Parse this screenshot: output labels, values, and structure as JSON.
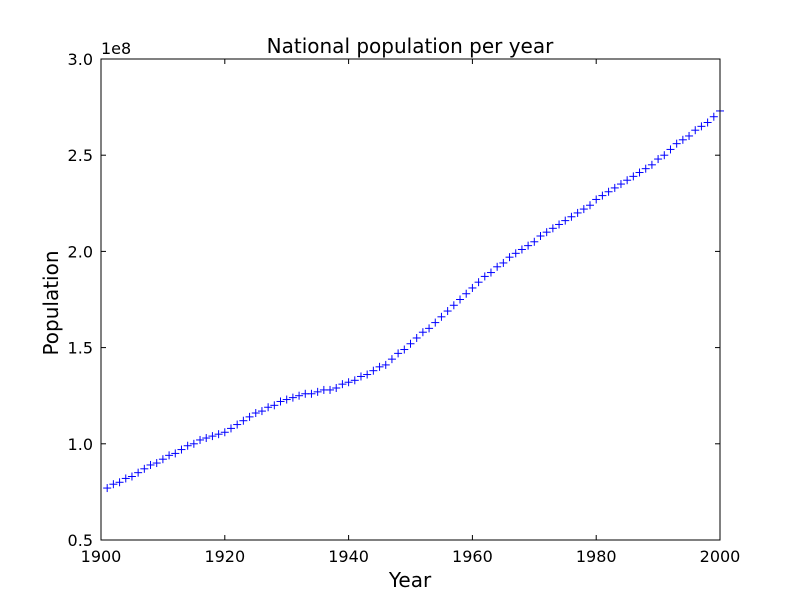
{
  "chart_data": {
    "type": "scatter",
    "title": "National population per year",
    "xlabel": "Year",
    "ylabel": "Population",
    "y_offset_label": "1e8",
    "xlim": [
      1900,
      2000
    ],
    "ylim": [
      0.5,
      3.0
    ],
    "x_ticks": [
      1900,
      1920,
      1940,
      1960,
      1980,
      2000
    ],
    "x_tick_labels": [
      "1900",
      "1920",
      "1940",
      "1960",
      "1980",
      "2000"
    ],
    "y_ticks": [
      0.5,
      1.0,
      1.5,
      2.0,
      2.5,
      3.0
    ],
    "y_tick_labels": [
      "0.5",
      "1.0",
      "1.5",
      "2.0",
      "2.5",
      "3.0"
    ],
    "grid": false,
    "marker": "+",
    "marker_color": "#0000ff",
    "series": [
      {
        "x": [
          1901,
          1902,
          1903,
          1904,
          1905,
          1906,
          1907,
          1908,
          1909,
          1910,
          1911,
          1912,
          1913,
          1914,
          1915,
          1916,
          1917,
          1918,
          1919,
          1920,
          1921,
          1922,
          1923,
          1924,
          1925,
          1926,
          1927,
          1928,
          1929,
          1930,
          1931,
          1932,
          1933,
          1934,
          1935,
          1936,
          1937,
          1938,
          1939,
          1940,
          1941,
          1942,
          1943,
          1944,
          1945,
          1946,
          1947,
          1948,
          1949,
          1950,
          1951,
          1952,
          1953,
          1954,
          1955,
          1956,
          1957,
          1958,
          1959,
          1960,
          1961,
          1962,
          1963,
          1964,
          1965,
          1966,
          1967,
          1968,
          1969,
          1970,
          1971,
          1972,
          1973,
          1974,
          1975,
          1976,
          1977,
          1978,
          1979,
          1980,
          1981,
          1982,
          1983,
          1984,
          1985,
          1986,
          1987,
          1988,
          1989,
          1990,
          1991,
          1992,
          1993,
          1994,
          1995,
          1996,
          1997,
          1998,
          1999,
          2000
        ],
        "y": [
          0.77,
          0.79,
          0.8,
          0.82,
          0.83,
          0.85,
          0.87,
          0.89,
          0.9,
          0.92,
          0.94,
          0.95,
          0.97,
          0.99,
          1.0,
          1.02,
          1.03,
          1.04,
          1.05,
          1.06,
          1.08,
          1.1,
          1.12,
          1.14,
          1.16,
          1.17,
          1.19,
          1.2,
          1.22,
          1.23,
          1.24,
          1.25,
          1.26,
          1.26,
          1.27,
          1.28,
          1.28,
          1.29,
          1.31,
          1.32,
          1.33,
          1.35,
          1.36,
          1.38,
          1.4,
          1.41,
          1.44,
          1.47,
          1.49,
          1.52,
          1.55,
          1.58,
          1.6,
          1.63,
          1.66,
          1.69,
          1.72,
          1.75,
          1.78,
          1.81,
          1.84,
          1.87,
          1.89,
          1.92,
          1.94,
          1.97,
          1.99,
          2.01,
          2.03,
          2.05,
          2.08,
          2.1,
          2.12,
          2.14,
          2.16,
          2.18,
          2.2,
          2.22,
          2.24,
          2.27,
          2.29,
          2.31,
          2.33,
          2.35,
          2.37,
          2.39,
          2.41,
          2.43,
          2.45,
          2.48,
          2.5,
          2.53,
          2.56,
          2.58,
          2.6,
          2.63,
          2.65,
          2.67,
          2.7,
          2.73
        ]
      }
    ]
  }
}
